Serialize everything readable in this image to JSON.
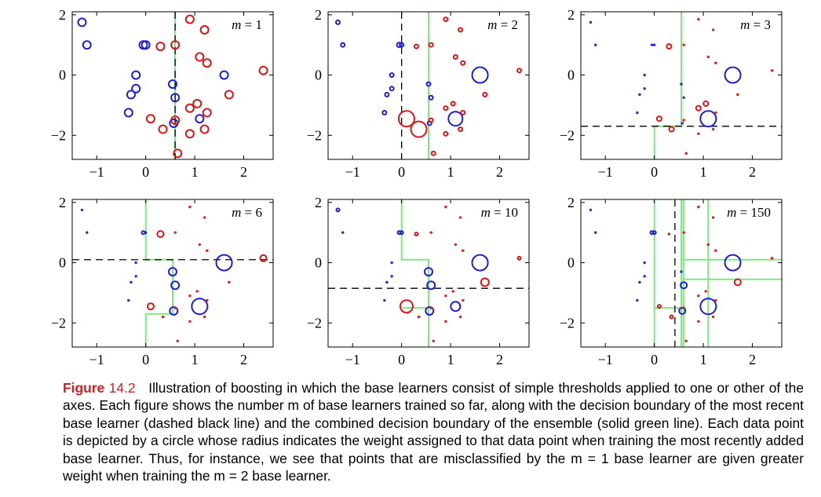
{
  "chart_data": {
    "type": "scatter",
    "panel_count": 6,
    "xlim": [
      -1.5,
      2.6
    ],
    "ylim": [
      -2.8,
      2.1
    ],
    "xticks": [
      -1,
      0,
      1,
      2
    ],
    "yticks": [
      -2,
      0,
      2
    ],
    "xtick_labels": [
      "−1",
      "0",
      "1",
      "2"
    ],
    "ytick_labels": [
      "−2",
      "0",
      "2"
    ],
    "series_colors": {
      "class_a": "#1f1fd6",
      "class_b": "#e01414",
      "boundary": "#7fe87f",
      "learner": "#000000"
    },
    "points": {
      "blue": [
        [
          -1.3,
          1.75
        ],
        [
          -1.2,
          1.0
        ],
        [
          -0.05,
          1.0
        ],
        [
          0.0,
          1.0
        ],
        [
          -0.2,
          0.0
        ],
        [
          -0.3,
          -0.65
        ],
        [
          -0.2,
          -0.45
        ],
        [
          -0.35,
          -1.25
        ],
        [
          0.55,
          -0.3
        ],
        [
          0.6,
          -0.75
        ],
        [
          0.57,
          -1.6
        ],
        [
          1.1,
          -1.45
        ],
        [
          1.6,
          0.0
        ]
      ],
      "red": [
        [
          0.3,
          0.95
        ],
        [
          0.6,
          1.0
        ],
        [
          0.9,
          1.85
        ],
        [
          1.2,
          1.5
        ],
        [
          1.1,
          0.6
        ],
        [
          1.25,
          0.4
        ],
        [
          2.4,
          0.15
        ],
        [
          1.7,
          -0.65
        ],
        [
          0.9,
          -1.1
        ],
        [
          1.05,
          -0.95
        ],
        [
          1.25,
          -1.25
        ],
        [
          0.6,
          -1.5
        ],
        [
          0.1,
          -1.45
        ],
        [
          0.35,
          -1.8
        ],
        [
          1.2,
          -1.8
        ],
        [
          0.9,
          -1.95
        ],
        [
          0.65,
          -2.6
        ]
      ]
    },
    "panels": [
      {
        "m_label": "m = 1",
        "m_value": 1,
        "blue_sizes": [
          5,
          5,
          5,
          5,
          5,
          5,
          5,
          5,
          5,
          5,
          5,
          5,
          5
        ],
        "red_sizes": [
          5,
          5,
          5,
          5,
          5,
          5,
          5,
          5,
          5,
          5,
          5,
          5,
          5,
          5,
          5,
          5,
          5
        ],
        "learner": {
          "orient": "v",
          "at": 0.6
        },
        "boundary": [
          [
            [
              0.6,
              2.1
            ],
            [
              0.6,
              -2.8
            ]
          ]
        ]
      },
      {
        "m_label": "m = 2",
        "m_value": 2,
        "blue_sizes": [
          2.5,
          2.5,
          3,
          2.5,
          2.5,
          2.5,
          2.5,
          2.5,
          2.5,
          2.5,
          2.5,
          9,
          10
        ],
        "red_sizes": [
          2.5,
          2.5,
          2.5,
          2.5,
          2.5,
          2.5,
          2.5,
          2.5,
          2.5,
          2.5,
          2.5,
          2.5,
          10,
          10,
          2.5,
          2.5,
          2.5
        ],
        "learner": {
          "orient": "v",
          "at": 0.0
        },
        "boundary": [
          [
            [
              0.55,
              2.1
            ],
            [
              0.55,
              -2.8
            ]
          ]
        ]
      },
      {
        "m_label": "m = 3",
        "m_value": 3,
        "blue_sizes": [
          1,
          1,
          1,
          1,
          1,
          1,
          1,
          1,
          1,
          1,
          1,
          10,
          10
        ],
        "red_sizes": [
          3,
          1,
          1,
          1,
          1,
          1,
          1,
          1,
          3,
          3,
          1,
          1,
          3,
          3,
          1,
          1,
          1
        ],
        "learner": {
          "orient": "h",
          "at": -1.7
        },
        "boundary": [
          [
            [
              0.55,
              2.1
            ],
            [
              0.55,
              -1.7
            ],
            [
              0.0,
              -1.7
            ],
            [
              0.0,
              -2.8
            ]
          ]
        ]
      },
      {
        "m_label": "m = 6",
        "m_value": 6,
        "blue_sizes": [
          1,
          1,
          2,
          1,
          1,
          1,
          1,
          1,
          5,
          5,
          5,
          10,
          10
        ],
        "red_sizes": [
          4,
          1,
          1,
          1,
          1,
          1,
          4,
          1,
          1,
          1,
          1,
          1,
          4,
          1,
          1,
          1,
          1
        ],
        "learner": {
          "orient": "h",
          "at": 0.1
        },
        "boundary": [
          [
            [
              0.0,
              2.1
            ],
            [
              0.0,
              0.1
            ],
            [
              0.55,
              0.1
            ],
            [
              0.55,
              -1.7
            ],
            [
              0.0,
              -1.7
            ],
            [
              0.0,
              -2.8
            ]
          ]
        ]
      },
      {
        "m_label": "m = 10",
        "m_value": 10,
        "blue_sizes": [
          2,
          1,
          2,
          2,
          1,
          1,
          1,
          1,
          5,
          5,
          5,
          6,
          10
        ],
        "red_sizes": [
          2,
          1,
          1,
          1,
          1,
          1,
          2,
          5,
          1,
          1,
          1,
          1,
          8,
          1,
          1,
          1,
          1
        ],
        "learner": {
          "orient": "h",
          "at": -0.85
        },
        "boundary": [
          [
            [
              0.0,
              2.1
            ],
            [
              0.0,
              0.1
            ],
            [
              0.55,
              0.1
            ],
            [
              0.55,
              -2.8
            ]
          ],
          [
            [
              0.0,
              -1.5
            ],
            [
              0.55,
              -1.5
            ]
          ]
        ]
      },
      {
        "m_label": "m = 150",
        "m_value": 150,
        "blue_sizes": [
          1,
          1,
          2,
          2,
          1,
          1,
          1,
          1,
          1,
          4,
          4,
          10,
          10
        ],
        "red_sizes": [
          1,
          1,
          1,
          1,
          1,
          1,
          1,
          4,
          1,
          1,
          1,
          1,
          2,
          2,
          1,
          1,
          1
        ],
        "learner": {
          "orient": "v",
          "at": 0.42
        },
        "boundary": [
          [
            [
              0.0,
              2.1
            ],
            [
              0.0,
              -2.8
            ]
          ],
          [
            [
              0.55,
              2.1
            ],
            [
              0.55,
              -2.8
            ]
          ],
          [
            [
              0.6,
              2.1
            ],
            [
              0.6,
              -2.8
            ]
          ],
          [
            [
              1.1,
              2.1
            ],
            [
              1.1,
              -2.8
            ]
          ],
          [
            [
              0.55,
              0.1
            ],
            [
              2.6,
              0.1
            ]
          ],
          [
            [
              0.6,
              -0.55
            ],
            [
              2.6,
              -0.55
            ]
          ],
          [
            [
              0.0,
              -1.5
            ],
            [
              0.6,
              -1.5
            ]
          ]
        ]
      }
    ]
  },
  "caption": {
    "label": "Figure",
    "number": "14.2",
    "text": "Illustration of boosting in which the base learners consist of simple thresholds applied to one or other of the axes. Each figure shows the number m of base learners trained so far, along with the decision boundary of the most recent base learner (dashed black line) and the combined decision boundary of the ensemble (solid green line). Each data point is depicted by a circle whose radius indicates the weight assigned to that data point when training the most recently added base learner. Thus, for instance, we see that points that are misclassified by the m = 1 base learner are given greater weight when training the m = 2 base learner."
  }
}
